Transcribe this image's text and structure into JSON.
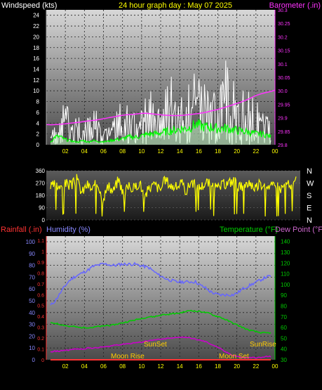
{
  "header": {
    "left_label": "Windspeed (kts)",
    "center_label": "24 hour graph day : May 07 2025",
    "right_label": "Barometer (.in)"
  },
  "colors": {
    "windspeed": "#ffffff",
    "wind_avg": "#00ff00",
    "wind_fill": "#ccffcc",
    "barometer": "#ff33ff",
    "direction": "#ffff00",
    "humidity": "#6666ff",
    "temperature": "#00cc00",
    "dewpoint": "#cc00cc",
    "rain": "#ff3333",
    "time_labels": "#ffff00",
    "astro": "#ffcc00"
  },
  "bottom_panel": {
    "rain_label": "Rainfall (.in)",
    "humidity_label": "Humidity (%)",
    "temperature_label": "Temperature (°F)",
    "dewpoint_label": "Dew Point (°F)",
    "events": {
      "sunset": "SunSet",
      "sunrise": "SunRise",
      "moonrise": "Moon Rise",
      "moonset": "Moon Set"
    }
  },
  "chart_data": [
    {
      "type": "line",
      "name": "wind",
      "x_ticks": [
        "02",
        "04",
        "06",
        "08",
        "10",
        "12",
        "14",
        "16",
        "18",
        "20",
        "22",
        "00"
      ],
      "left_axis": {
        "label": "Windspeed (kts)",
        "ticks": [
          0,
          2,
          4,
          6,
          8,
          10,
          12,
          14,
          16,
          18,
          20,
          22,
          24
        ],
        "ylim": [
          0,
          25
        ]
      },
      "right_axis": {
        "label": "Barometer (.in)",
        "ticks": [
          29.8,
          29.9,
          30.0,
          30.1,
          30.2,
          30.3
        ],
        "ylim": [
          29.8,
          30.3
        ]
      },
      "windspeed_envelope": [
        2,
        4,
        6,
        8,
        7,
        5,
        6,
        4,
        5,
        7,
        7,
        4,
        3,
        4,
        6,
        8,
        7,
        8,
        6,
        6,
        10,
        11,
        9,
        8,
        9,
        12,
        13,
        10,
        11,
        12,
        11,
        15,
        13,
        12,
        12,
        11,
        10,
        17,
        14,
        12,
        10,
        12,
        10,
        11,
        9,
        9,
        7,
        6
      ],
      "wind_average": [
        0.5,
        1.5,
        1.5,
        1,
        0.8,
        0.6,
        0.5,
        0.8,
        0.5,
        0.8,
        0.6,
        0.6,
        0.6,
        0.8,
        1,
        1,
        1.3,
        1.5,
        1.4,
        1.5,
        1.8,
        2,
        2,
        2.1,
        2.3,
        2.5,
        2.6,
        2.8,
        3,
        3,
        3.3,
        3.8,
        3.5,
        3.3,
        3.3,
        3.1,
        3,
        3.1,
        3,
        2.8,
        2.6,
        2.5,
        2.4,
        2.2,
        2,
        2,
        1.8,
        1.5
      ],
      "barometer": [
        29.875,
        29.874,
        29.875,
        29.876,
        29.878,
        29.88,
        29.882,
        29.884,
        29.887,
        29.889,
        29.891,
        29.894,
        29.897,
        29.901,
        29.904,
        29.907,
        29.91,
        29.912,
        29.913,
        29.915,
        29.917,
        29.916,
        29.914,
        29.912,
        29.91,
        29.909,
        29.908,
        29.908,
        29.909,
        29.911,
        29.913,
        29.915,
        29.918,
        29.921,
        29.926,
        29.93,
        29.935,
        29.94,
        29.946,
        29.952,
        29.958,
        29.965,
        29.973,
        29.982,
        29.988,
        29.993,
        29.997,
        30.002
      ]
    },
    {
      "type": "line",
      "name": "wind-direction",
      "right_labels": [
        "N",
        "W",
        "S",
        "E",
        "N"
      ],
      "left_axis": {
        "ticks": [
          0,
          90,
          180,
          270,
          360
        ],
        "ylim": [
          0,
          360
        ]
      },
      "direction": [
        240,
        260,
        230,
        270,
        250,
        300,
        200,
        260,
        220,
        280,
        160,
        240,
        210,
        300,
        190,
        250,
        230,
        280,
        170,
        240,
        260,
        220,
        300,
        250,
        240,
        270,
        210,
        290,
        230,
        250,
        280,
        240,
        230,
        260,
        270,
        290,
        250,
        230,
        280,
        240,
        260,
        270,
        250,
        240,
        230,
        260,
        250,
        280
      ]
    },
    {
      "type": "line",
      "name": "temp-humidity",
      "left_axis_rain": {
        "label": "Rainfall (.in)",
        "ticks": [
          0,
          0.1,
          0.2,
          0.3,
          0.4,
          0.5,
          0.6,
          0.7,
          0.8,
          0.9,
          1,
          1.1
        ],
        "ylim": [
          0,
          1.1
        ]
      },
      "left_axis_humidity": {
        "label": "Humidity (%)",
        "ticks": [
          0,
          10,
          20,
          30,
          40,
          50,
          60,
          70,
          80,
          90,
          100
        ],
        "ylim": [
          0,
          100
        ]
      },
      "right_axis": {
        "label": "Temperature (°F)",
        "ticks": [
          30,
          40,
          50,
          60,
          70,
          80,
          90,
          100,
          110,
          120,
          130,
          140
        ],
        "ylim": [
          30,
          145
        ]
      },
      "humidity": [
        46,
        50,
        56,
        62,
        67,
        70,
        72,
        74,
        76,
        79,
        80,
        81,
        81,
        80,
        80,
        81,
        81,
        81,
        81,
        80,
        79,
        78,
        75,
        72,
        70,
        68,
        67,
        66,
        66,
        66,
        66,
        66,
        63,
        61,
        58,
        56,
        55,
        55,
        55,
        55,
        57,
        60,
        62,
        64,
        66,
        68,
        70,
        71
      ],
      "temperature": [
        64,
        64,
        63,
        62,
        61,
        61,
        60,
        60,
        60,
        60,
        61,
        61,
        62,
        62,
        63,
        64,
        65,
        66,
        67,
        68,
        69,
        70,
        70,
        71,
        72,
        72,
        73,
        73,
        74,
        75,
        76,
        75,
        75,
        74,
        73,
        71,
        70,
        68,
        66,
        64,
        62,
        60,
        58,
        57,
        56,
        55,
        55,
        55
      ],
      "dewpoint": [
        37,
        38,
        38,
        39,
        39,
        40,
        40,
        40,
        41,
        41,
        41,
        42,
        42,
        43,
        44,
        44,
        45,
        45,
        46,
        46,
        47,
        48,
        48,
        49,
        49,
        50,
        50,
        51,
        51,
        51,
        50,
        49,
        48,
        47,
        45,
        43,
        41,
        38,
        36,
        34,
        33,
        32,
        32,
        32,
        32,
        32,
        33,
        33
      ],
      "rain": [
        0,
        0,
        0,
        0,
        0,
        0,
        0,
        0,
        0,
        0,
        0,
        0,
        0,
        0,
        0,
        0,
        0,
        0,
        0,
        0,
        0,
        0,
        0,
        0,
        0,
        0,
        0,
        0,
        0,
        0,
        0,
        0,
        0,
        0,
        0,
        0,
        0,
        0,
        0,
        0,
        0,
        0,
        0,
        0,
        0,
        0,
        0,
        0
      ]
    }
  ]
}
